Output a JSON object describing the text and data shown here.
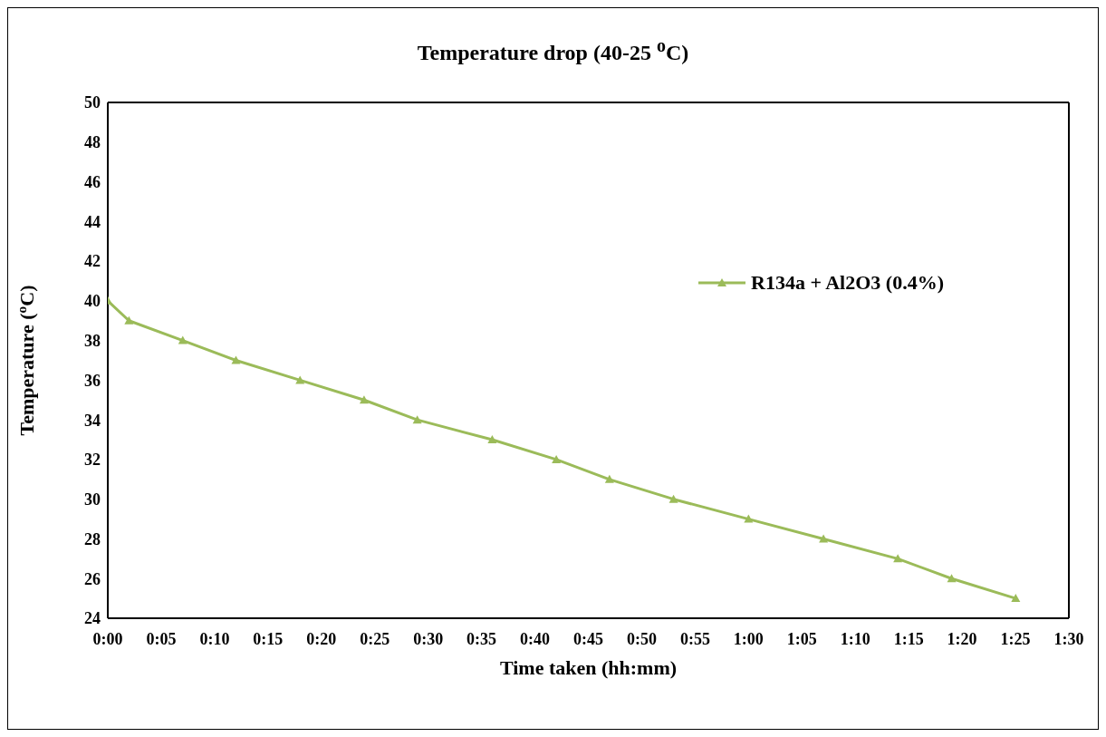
{
  "chart_data": {
    "type": "line",
    "title": "Temperature drop (40-25 $^{o}$C)",
    "xlabel": "Time taken (hh:mm)",
    "ylabel": "Temperature ($^{o}$C)",
    "x": [
      0,
      0.033,
      0.117,
      0.2,
      0.3,
      0.4,
      0.483,
      0.6,
      0.7,
      0.783,
      0.883,
      1.0,
      1.117,
      1.233,
      1.317,
      1.417
    ],
    "series": [
      {
        "name": "R134a + Al2O3 (0.4%)",
        "color": "#9bbb59",
        "values": [
          40,
          39,
          38,
          37,
          36,
          35,
          34,
          33,
          32,
          31,
          30,
          29,
          28,
          27,
          26,
          25
        ]
      }
    ],
    "xlim": [
      0,
      1.5
    ],
    "xticks": [
      {
        "value": 0,
        "label": "0:00"
      },
      {
        "value": 0.0833,
        "label": "0:05"
      },
      {
        "value": 0.1667,
        "label": "0:10"
      },
      {
        "value": 0.25,
        "label": "0:15"
      },
      {
        "value": 0.3333,
        "label": "0:20"
      },
      {
        "value": 0.4167,
        "label": "0:25"
      },
      {
        "value": 0.5,
        "label": "0:30"
      },
      {
        "value": 0.5833,
        "label": "0:35"
      },
      {
        "value": 0.6667,
        "label": "0:40"
      },
      {
        "value": 0.75,
        "label": "0:45"
      },
      {
        "value": 0.8333,
        "label": "0:50"
      },
      {
        "value": 0.9167,
        "label": "0:55"
      },
      {
        "value": 1.0,
        "label": "1:00"
      },
      {
        "value": 1.0833,
        "label": "1:05"
      },
      {
        "value": 1.1667,
        "label": "1:10"
      },
      {
        "value": 1.25,
        "label": "1:15"
      },
      {
        "value": 1.3333,
        "label": "1:20"
      },
      {
        "value": 1.4167,
        "label": "1:25"
      },
      {
        "value": 1.5,
        "label": "1:30"
      }
    ],
    "ylim": [
      24,
      50
    ],
    "yticks": [
      24,
      26,
      28,
      30,
      32,
      34,
      36,
      38,
      40,
      42,
      44,
      46,
      48,
      50
    ],
    "grid": false,
    "legend": "right",
    "marker": "triangle",
    "line_style": "solid"
  }
}
